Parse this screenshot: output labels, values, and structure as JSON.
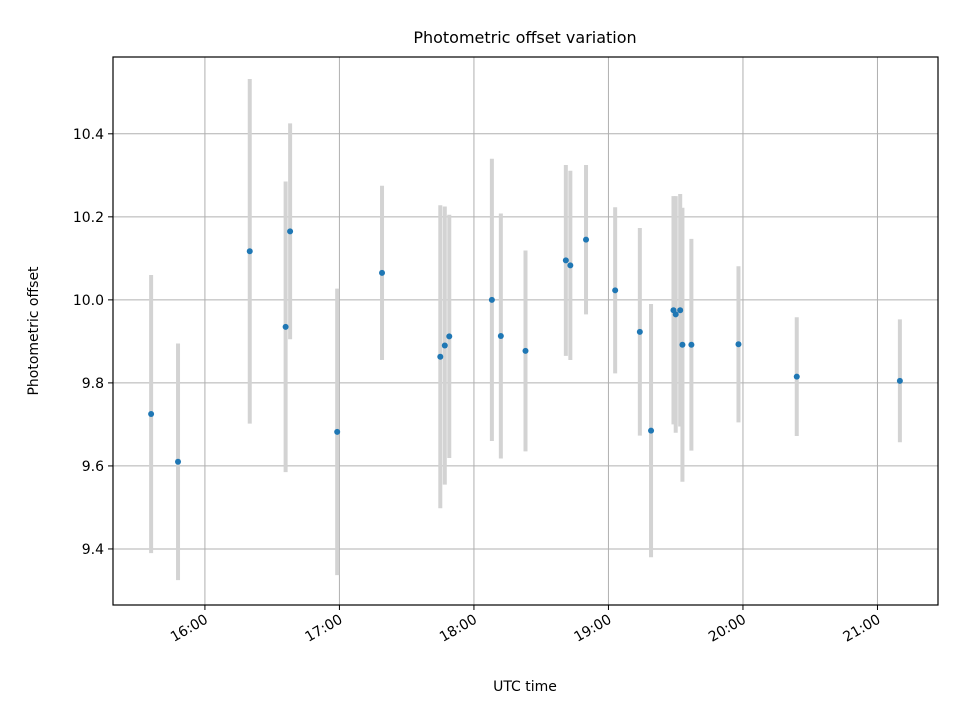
{
  "chart_data": {
    "type": "scatter",
    "title": "Photometric offset variation",
    "xlabel": "UTC time",
    "ylabel": "Photometric offset",
    "grid": true,
    "xlim": [
      "15:19",
      "21:27"
    ],
    "ylim": [
      9.265,
      10.585
    ],
    "xticks": [
      "16:00",
      "17:00",
      "18:00",
      "19:00",
      "20:00",
      "21:00"
    ],
    "yticks": [
      9.4,
      9.6,
      9.8,
      10.0,
      10.2,
      10.4
    ],
    "colors": {
      "point": "#1f77b4",
      "errorbar": "#d3d3d3",
      "grid": "#b0b0b0"
    },
    "series": [
      {
        "points": [
          {
            "x": "15:36",
            "y": 9.725,
            "yerr": 0.335
          },
          {
            "x": "15:48",
            "y": 9.61,
            "yerr": 0.285
          },
          {
            "x": "16:20",
            "y": 10.117,
            "yerr": 0.415
          },
          {
            "x": "16:36",
            "y": 9.935,
            "yerr": 0.35
          },
          {
            "x": "16:38",
            "y": 10.165,
            "yerr": 0.26
          },
          {
            "x": "16:59",
            "y": 9.682,
            "yerr": 0.345
          },
          {
            "x": "17:19",
            "y": 10.065,
            "yerr": 0.21
          },
          {
            "x": "17:45",
            "y": 9.863,
            "yerr": 0.365
          },
          {
            "x": "17:47",
            "y": 9.89,
            "yerr": 0.335
          },
          {
            "x": "17:49",
            "y": 9.912,
            "yerr": 0.293
          },
          {
            "x": "18:08",
            "y": 10.0,
            "yerr": 0.34
          },
          {
            "x": "18:12",
            "y": 9.913,
            "yerr": 0.295
          },
          {
            "x": "18:23",
            "y": 9.877,
            "yerr": 0.242
          },
          {
            "x": "18:41",
            "y": 10.095,
            "yerr": 0.23
          },
          {
            "x": "18:43",
            "y": 10.083,
            "yerr": 0.228
          },
          {
            "x": "18:50",
            "y": 10.145,
            "yerr": 0.18
          },
          {
            "x": "19:03",
            "y": 10.023,
            "yerr": 0.2
          },
          {
            "x": "19:14",
            "y": 9.923,
            "yerr": 0.25
          },
          {
            "x": "19:19",
            "y": 9.685,
            "yerr": 0.305
          },
          {
            "x": "19:29",
            "y": 9.975,
            "yerr": 0.275
          },
          {
            "x": "19:30",
            "y": 9.965,
            "yerr": 0.285
          },
          {
            "x": "19:32",
            "y": 9.975,
            "yerr": 0.28
          },
          {
            "x": "19:33",
            "y": 9.892,
            "yerr": 0.33
          },
          {
            "x": "19:37",
            "y": 9.892,
            "yerr": 0.255
          },
          {
            "x": "19:58",
            "y": 9.893,
            "yerr": 0.188
          },
          {
            "x": "20:24",
            "y": 9.815,
            "yerr": 0.143
          },
          {
            "x": "21:10",
            "y": 9.805,
            "yerr": 0.148
          }
        ]
      }
    ]
  }
}
